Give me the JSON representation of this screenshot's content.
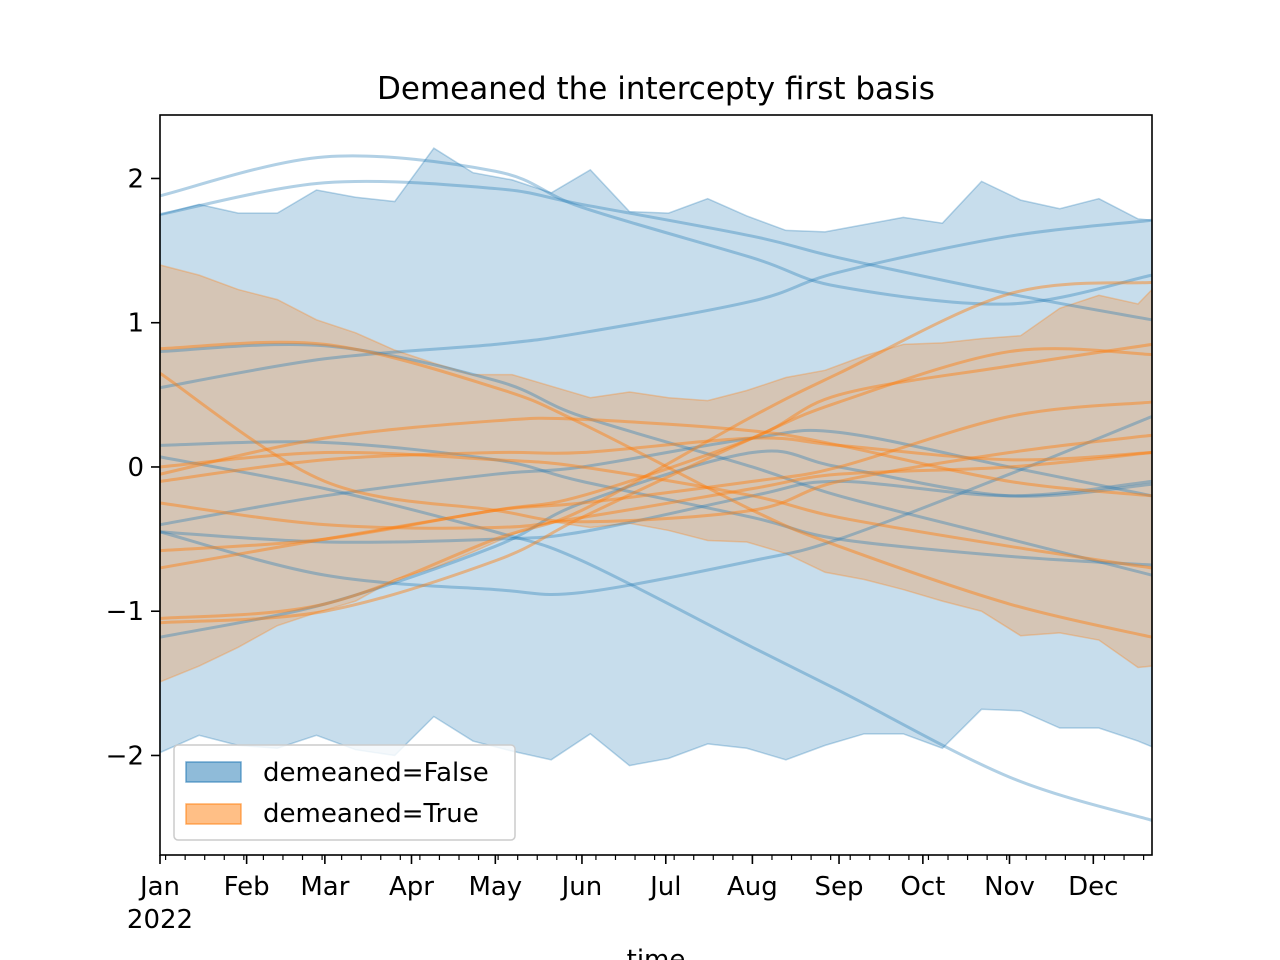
{
  "chart_data": {
    "type": "line",
    "title": "Demeaned the intercepty first basis",
    "xlabel": "time",
    "ylabel": "",
    "x_unit": "day of year 2022",
    "xlim": [
      0,
      355
    ],
    "ylim": [
      -2.69,
      2.44
    ],
    "x_ticks": [
      {
        "day": 0,
        "label": "Jan",
        "sublabel": "2022"
      },
      {
        "day": 31,
        "label": "Feb"
      },
      {
        "day": 59,
        "label": "Mar"
      },
      {
        "day": 90,
        "label": "Apr"
      },
      {
        "day": 120,
        "label": "May"
      },
      {
        "day": 151,
        "label": "Jun"
      },
      {
        "day": 181,
        "label": "Jul"
      },
      {
        "day": 212,
        "label": "Aug"
      },
      {
        "day": 243,
        "label": "Sep"
      },
      {
        "day": 273,
        "label": "Oct"
      },
      {
        "day": 304,
        "label": "Nov"
      },
      {
        "day": 334,
        "label": "Dec"
      }
    ],
    "y_ticks": [
      {
        "value": 2,
        "label": "2"
      },
      {
        "value": 1,
        "label": "1"
      },
      {
        "value": 0,
        "label": "0"
      },
      {
        "value": -1,
        "label": "−1"
      },
      {
        "value": -2,
        "label": "−2"
      }
    ],
    "legend": {
      "placement": "lower-left",
      "entries": [
        {
          "label": "demeaned=False",
          "color": "#1f77b4"
        },
        {
          "label": "demeaned=True",
          "color": "#ff7f0e"
        }
      ]
    },
    "band_x": [
      0,
      14,
      28,
      42,
      56,
      70,
      84,
      98,
      112,
      126,
      140,
      154,
      168,
      182,
      196,
      210,
      224,
      238,
      252,
      266,
      280,
      294,
      308,
      322,
      336,
      350,
      355
    ],
    "bands": [
      {
        "name": "demeaned=False",
        "color": "#1f77b4",
        "upper": [
          1.75,
          1.82,
          1.76,
          1.76,
          1.92,
          1.87,
          1.84,
          2.21,
          2.04,
          1.99,
          1.9,
          2.06,
          1.77,
          1.76,
          1.86,
          1.74,
          1.64,
          1.63,
          1.68,
          1.73,
          1.69,
          1.98,
          1.85,
          1.79,
          1.86,
          1.72,
          1.71
        ],
        "lower": [
          -1.98,
          -1.86,
          -1.93,
          -1.95,
          -1.86,
          -1.96,
          -2.0,
          -1.73,
          -1.9,
          -1.97,
          -2.03,
          -1.85,
          -2.07,
          -2.02,
          -1.92,
          -1.95,
          -2.03,
          -1.93,
          -1.85,
          -1.85,
          -1.95,
          -1.68,
          -1.69,
          -1.81,
          -1.81,
          -1.9,
          -1.94
        ]
      },
      {
        "name": "demeaned=True",
        "color": "#ff7f0e",
        "upper": [
          1.4,
          1.33,
          1.23,
          1.16,
          1.02,
          0.93,
          0.81,
          0.72,
          0.64,
          0.64,
          0.56,
          0.48,
          0.52,
          0.48,
          0.46,
          0.53,
          0.62,
          0.67,
          0.77,
          0.85,
          0.86,
          0.89,
          0.91,
          1.1,
          1.19,
          1.13,
          1.23
        ],
        "lower": [
          -1.49,
          -1.38,
          -1.25,
          -1.1,
          -1.01,
          -0.93,
          -0.78,
          -0.7,
          -0.59,
          -0.47,
          -0.38,
          -0.42,
          -0.39,
          -0.44,
          -0.51,
          -0.52,
          -0.6,
          -0.73,
          -0.78,
          -0.85,
          -0.93,
          -1.0,
          -1.17,
          -1.15,
          -1.2,
          -1.39,
          -1.38
        ]
      }
    ],
    "line_x": [
      0,
      59,
      120,
      151,
      212,
      243,
      304,
      355
    ],
    "series": [
      {
        "group": "demeaned=False",
        "color": "#1f77b4",
        "values": [
          1.88,
          2.15,
          2.05,
          1.8,
          1.45,
          1.25,
          1.13,
          1.33
        ]
      },
      {
        "group": "demeaned=False",
        "color": "#1f77b4",
        "values": [
          1.75,
          1.97,
          1.93,
          1.82,
          1.6,
          1.45,
          1.2,
          1.02
        ]
      },
      {
        "group": "demeaned=False",
        "color": "#1f77b4",
        "values": [
          0.55,
          0.75,
          0.85,
          0.93,
          1.15,
          1.35,
          1.6,
          1.71
        ]
      },
      {
        "group": "demeaned=False",
        "color": "#1f77b4",
        "values": [
          0.07,
          -0.15,
          -0.45,
          -0.65,
          -1.25,
          -1.55,
          -2.15,
          -2.45
        ]
      },
      {
        "group": "demeaned=False",
        "color": "#1f77b4",
        "values": [
          0.8,
          0.84,
          0.6,
          0.35,
          0.0,
          -0.2,
          -0.5,
          -0.75
        ]
      },
      {
        "group": "demeaned=False",
        "color": "#1f77b4",
        "values": [
          0.15,
          0.17,
          0.05,
          -0.1,
          -0.35,
          -0.5,
          -0.62,
          -0.68
        ]
      },
      {
        "group": "demeaned=False",
        "color": "#1f77b4",
        "values": [
          -0.4,
          -0.2,
          -0.05,
          0.0,
          0.2,
          0.24,
          0.0,
          -0.2
        ]
      },
      {
        "group": "demeaned=False",
        "color": "#1f77b4",
        "values": [
          -0.45,
          -0.52,
          -0.5,
          -0.45,
          -0.2,
          -0.1,
          -0.2,
          -0.1
        ]
      },
      {
        "group": "demeaned=False",
        "color": "#1f77b4",
        "values": [
          -1.18,
          -0.95,
          -0.55,
          -0.25,
          0.1,
          0.0,
          -0.2,
          -0.12
        ]
      },
      {
        "group": "demeaned=False",
        "color": "#1f77b4",
        "values": [
          -0.45,
          -0.75,
          -0.85,
          -0.87,
          -0.65,
          -0.5,
          -0.05,
          0.35
        ]
      },
      {
        "group": "demeaned=True",
        "color": "#ff7f0e",
        "values": [
          0.82,
          0.85,
          0.55,
          0.3,
          -0.3,
          -0.55,
          -0.95,
          -1.18
        ]
      },
      {
        "group": "demeaned=True",
        "color": "#ff7f0e",
        "values": [
          0.65,
          -0.1,
          -0.3,
          -0.38,
          -0.3,
          -0.1,
          0.1,
          0.22
        ]
      },
      {
        "group": "demeaned=True",
        "color": "#ff7f0e",
        "values": [
          -0.05,
          0.2,
          0.32,
          0.33,
          0.25,
          0.15,
          -0.1,
          -0.2
        ]
      },
      {
        "group": "demeaned=True",
        "color": "#ff7f0e",
        "values": [
          -0.1,
          0.05,
          0.1,
          0.1,
          0.2,
          0.15,
          0.05,
          0.1
        ]
      },
      {
        "group": "demeaned=True",
        "color": "#ff7f0e",
        "values": [
          -1.05,
          -0.95,
          -0.5,
          -0.3,
          0.35,
          0.65,
          1.2,
          1.28
        ]
      },
      {
        "group": "demeaned=True",
        "color": "#ff7f0e",
        "values": [
          -0.7,
          -0.5,
          -0.3,
          -0.2,
          0.2,
          0.5,
          0.7,
          0.85
        ]
      },
      {
        "group": "demeaned=True",
        "color": "#ff7f0e",
        "values": [
          -1.08,
          -1.0,
          -0.65,
          -0.35,
          0.2,
          0.45,
          0.8,
          0.78
        ]
      },
      {
        "group": "demeaned=True",
        "color": "#ff7f0e",
        "values": [
          -0.58,
          -0.5,
          -0.3,
          -0.25,
          -0.1,
          0.0,
          0.35,
          0.45
        ]
      },
      {
        "group": "demeaned=True",
        "color": "#ff7f0e",
        "values": [
          -0.25,
          -0.4,
          -0.42,
          -0.35,
          -0.15,
          -0.05,
          0.0,
          0.1
        ]
      },
      {
        "group": "demeaned=True",
        "color": "#ff7f0e",
        "values": [
          0.0,
          0.1,
          0.05,
          0.0,
          -0.2,
          -0.35,
          -0.55,
          -0.7
        ]
      }
    ]
  }
}
